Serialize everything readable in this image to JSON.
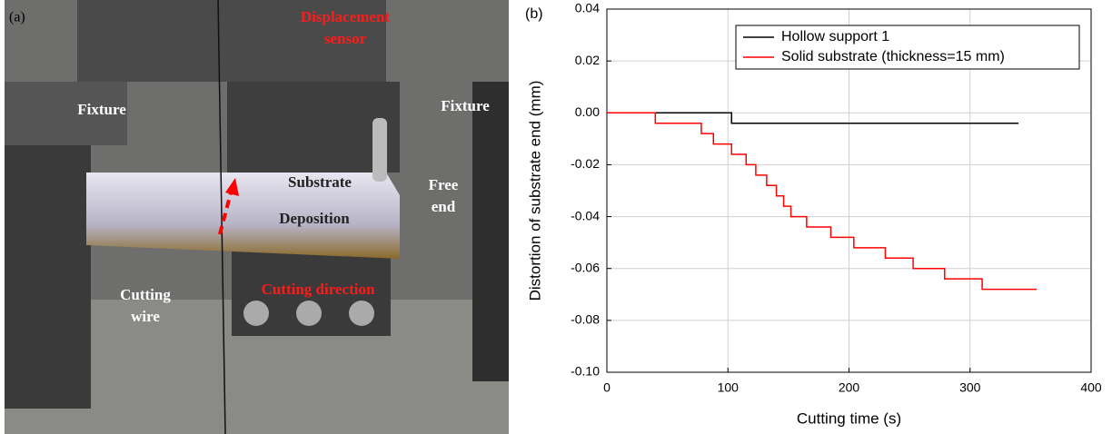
{
  "photo": {
    "panel_label": "(a)",
    "labels": [
      {
        "lines": [
          "Displacement",
          "sensor"
        ]
      },
      {
        "lines": [
          "Fixture"
        ]
      },
      {
        "lines": [
          "Fixture"
        ]
      },
      {
        "lines": [
          "Substrate"
        ]
      },
      {
        "lines": [
          "Free",
          "end"
        ]
      },
      {
        "lines": [
          "Deposition"
        ]
      },
      {
        "lines": [
          "Cutting",
          "wire"
        ]
      },
      {
        "lines": [
          "Cutting direction"
        ]
      }
    ]
  },
  "chart_data": {
    "type": "line",
    "panel_label": "(b)",
    "x_label": "Cutting time (s)",
    "y_label": "Distortion of substrate end (mm)",
    "xlim": [
      0,
      400
    ],
    "xticks": [
      0,
      100,
      200,
      300,
      400
    ],
    "ylim": [
      -0.1,
      0.04
    ],
    "yticks": [
      {
        "value": -0.1,
        "label": "-0.10"
      },
      -0.08,
      -0.06,
      -0.04,
      -0.02,
      {
        "value": 0,
        "label": "0.00"
      },
      0.02,
      0.04
    ],
    "grid": true,
    "legend": "top-right",
    "series": [
      {
        "name": "Hollow support 1",
        "color": "#000000",
        "x": [
          0,
          103,
          103,
          340
        ],
        "values": [
          0,
          0,
          -0.004,
          -0.004
        ]
      },
      {
        "name": "Solid substrate (thickness=15 mm)",
        "color": "#ff0000",
        "x": [
          0,
          40,
          40,
          78,
          78,
          88,
          88,
          103,
          103,
          115,
          115,
          123,
          123,
          132,
          132,
          140,
          140,
          146,
          146,
          152,
          152,
          165,
          165,
          185,
          185,
          204,
          204,
          230,
          230,
          253,
          253,
          279,
          279,
          310,
          310,
          355
        ],
        "values": [
          0,
          0,
          -0.004,
          -0.004,
          -0.008,
          -0.008,
          -0.012,
          -0.012,
          -0.016,
          -0.016,
          -0.02,
          -0.02,
          -0.024,
          -0.024,
          -0.028,
          -0.028,
          -0.032,
          -0.032,
          -0.036,
          -0.036,
          -0.04,
          -0.04,
          -0.044,
          -0.044,
          -0.048,
          -0.048,
          -0.052,
          -0.052,
          -0.056,
          -0.056,
          -0.06,
          -0.06,
          -0.064,
          -0.064,
          -0.068,
          -0.068
        ]
      }
    ]
  }
}
